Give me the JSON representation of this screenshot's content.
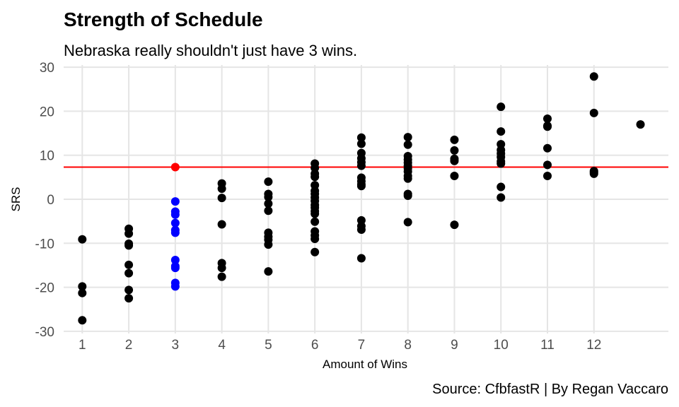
{
  "chart_data": {
    "type": "scatter",
    "title": "Strength of Schedule",
    "subtitle": "Nebraska really shouldn't just have 3 wins.",
    "xlabel": "Amount of Wins",
    "ylabel": "SRS",
    "caption": "Source: CfbfastR | By Regan Vaccaro",
    "xlim": [
      0.6,
      13.6
    ],
    "ylim": [
      -30.5,
      30.5
    ],
    "x_ticks": [
      1,
      2,
      3,
      4,
      5,
      6,
      7,
      8,
      9,
      10,
      11,
      12
    ],
    "y_ticks": [
      30,
      20,
      10,
      0,
      -10,
      -20,
      -30
    ],
    "grid": true,
    "reference_line": {
      "y": 7.3,
      "color": "#ff0000"
    },
    "colors": {
      "default": "#000000",
      "three_wins": "#0000ff",
      "highlight": "#ff0000",
      "grid": "#e5e5e5"
    },
    "series": [
      {
        "color": "#000000",
        "points": [
          [
            1,
            -9.1
          ],
          [
            1,
            -19.8
          ],
          [
            1,
            -21.3
          ],
          [
            1,
            -27.5
          ],
          [
            2,
            -6.7
          ],
          [
            2,
            -7.8
          ],
          [
            2,
            -10.1
          ],
          [
            2,
            -10.5
          ],
          [
            2,
            -14.9
          ],
          [
            2,
            -16.8
          ],
          [
            2,
            -20.6
          ],
          [
            2,
            -22.5
          ],
          [
            4,
            3.6
          ],
          [
            4,
            2.4
          ],
          [
            4,
            0.3
          ],
          [
            4,
            -5.7
          ],
          [
            4,
            -14.5
          ],
          [
            4,
            -15.6
          ],
          [
            4,
            -17.6
          ],
          [
            5,
            4.0
          ],
          [
            5,
            1.2
          ],
          [
            5,
            0.5
          ],
          [
            5,
            -1.0
          ],
          [
            5,
            -2.6
          ],
          [
            5,
            -7.6
          ],
          [
            5,
            -8.5
          ],
          [
            5,
            -9.2
          ],
          [
            5,
            -10.3
          ],
          [
            5,
            -16.4
          ],
          [
            6,
            8.1
          ],
          [
            6,
            7.1
          ],
          [
            6,
            5.8
          ],
          [
            6,
            5.1
          ],
          [
            6,
            3.2
          ],
          [
            6,
            1.9
          ],
          [
            6,
            1.2
          ],
          [
            6,
            0.4
          ],
          [
            6,
            -0.4
          ],
          [
            6,
            -1.3
          ],
          [
            6,
            -1.9
          ],
          [
            6,
            -2.7
          ],
          [
            6,
            -3.3
          ],
          [
            6,
            -5.1
          ],
          [
            6,
            -7.3
          ],
          [
            6,
            -8.2
          ],
          [
            6,
            -9.0
          ],
          [
            6,
            -12.0
          ],
          [
            7,
            14.0
          ],
          [
            7,
            12.6
          ],
          [
            7,
            10.5
          ],
          [
            7,
            9.3
          ],
          [
            7,
            8.4
          ],
          [
            7,
            7.6
          ],
          [
            7,
            4.9
          ],
          [
            7,
            4.1
          ],
          [
            7,
            3.4
          ],
          [
            7,
            3.0
          ],
          [
            7,
            -4.8
          ],
          [
            7,
            -6.1
          ],
          [
            7,
            -6.9
          ],
          [
            7,
            -13.4
          ],
          [
            8,
            14.1
          ],
          [
            8,
            12.4
          ],
          [
            8,
            9.8
          ],
          [
            8,
            9.0
          ],
          [
            8,
            8.3
          ],
          [
            8,
            7.6
          ],
          [
            8,
            7.0
          ],
          [
            8,
            6.3
          ],
          [
            8,
            5.3
          ],
          [
            8,
            4.7
          ],
          [
            8,
            1.2
          ],
          [
            8,
            0.8
          ],
          [
            8,
            -5.2
          ],
          [
            9,
            13.5
          ],
          [
            9,
            11.1
          ],
          [
            9,
            9.2
          ],
          [
            9,
            8.7
          ],
          [
            9,
            5.3
          ],
          [
            9,
            -5.8
          ],
          [
            10,
            21.0
          ],
          [
            10,
            15.4
          ],
          [
            10,
            12.5
          ],
          [
            10,
            11.2
          ],
          [
            10,
            10.4
          ],
          [
            10,
            9.6
          ],
          [
            10,
            8.6
          ],
          [
            10,
            8.1
          ],
          [
            10,
            2.8
          ],
          [
            10,
            0.4
          ],
          [
            11,
            18.3
          ],
          [
            11,
            16.7
          ],
          [
            11,
            16.5
          ],
          [
            11,
            11.6
          ],
          [
            11,
            7.8
          ],
          [
            11,
            5.3
          ],
          [
            12,
            27.9
          ],
          [
            12,
            19.6
          ],
          [
            12,
            6.4
          ],
          [
            12,
            6.1
          ],
          [
            12,
            5.8
          ],
          [
            13,
            17.0
          ]
        ]
      },
      {
        "color": "#0000ff",
        "points": [
          [
            3,
            -0.5
          ],
          [
            3,
            -2.8
          ],
          [
            3,
            -3.5
          ],
          [
            3,
            -5.4
          ],
          [
            3,
            -7.0
          ],
          [
            3,
            -7.6
          ],
          [
            3,
            -13.8
          ],
          [
            3,
            -15.2
          ],
          [
            3,
            -15.6
          ],
          [
            3,
            -19.0
          ],
          [
            3,
            -19.8
          ]
        ]
      },
      {
        "color": "#ff0000",
        "points": [
          [
            3,
            7.3
          ]
        ]
      }
    ]
  }
}
